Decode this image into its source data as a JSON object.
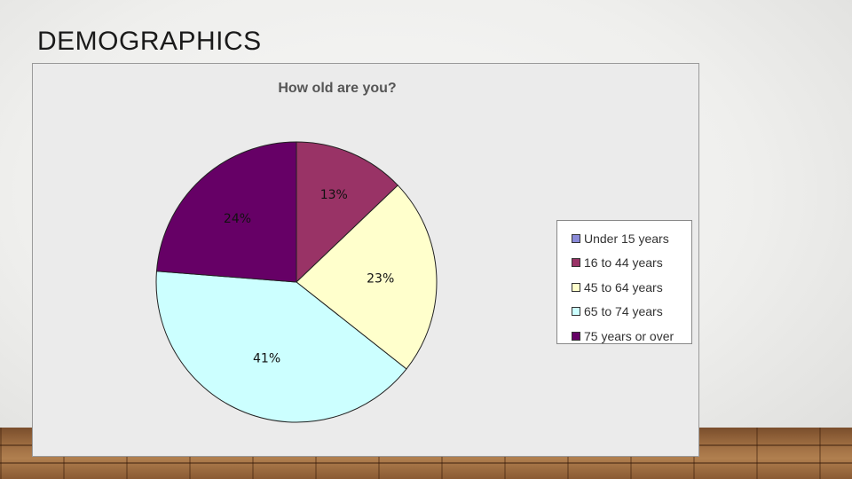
{
  "slide": {
    "title": "DEMOGRAPHICS"
  },
  "chart_data": {
    "type": "pie",
    "title": "How old are you?",
    "categories": [
      "Under 15 years",
      "16 to 44 years",
      "45 to 64 years",
      "65 to 74 years",
      "75 years or over"
    ],
    "values": [
      0,
      13,
      23,
      41,
      24
    ],
    "data_labels": [
      "",
      "13%",
      "23%",
      "41%",
      "24%"
    ],
    "colors": [
      "#8a8ad8",
      "#993366",
      "#ffffcc",
      "#ccffff",
      "#660066"
    ],
    "legend_position": "right"
  }
}
